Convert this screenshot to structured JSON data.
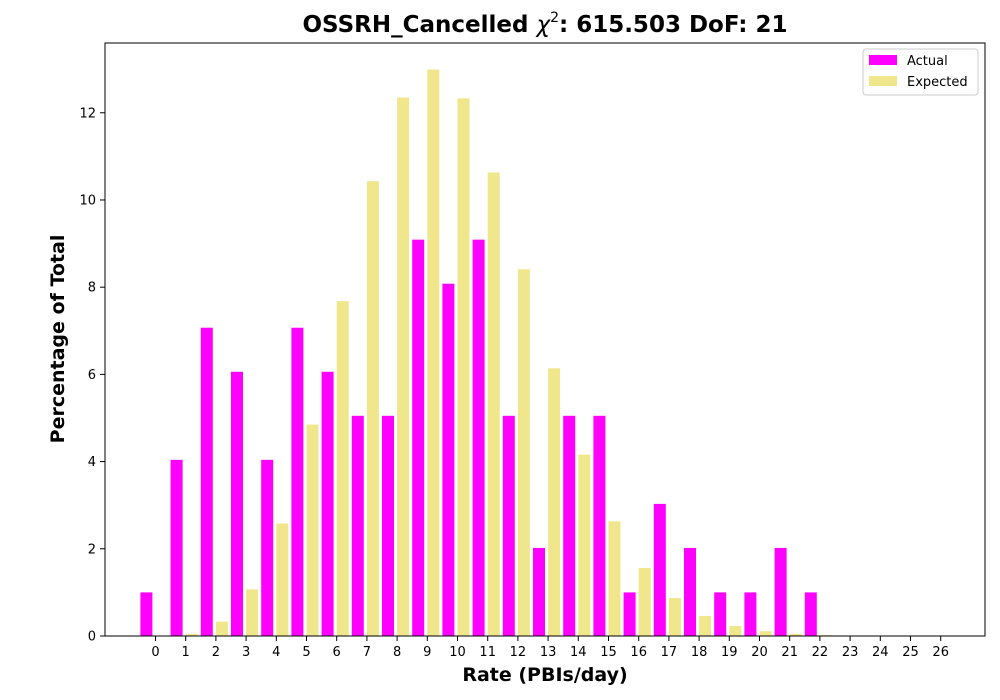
{
  "chart_data": {
    "type": "bar",
    "title_main": "OSSRH_Cancelled ",
    "title_symbol": "χ",
    "title_exp": "2",
    "title_rest": ": 615.503 DoF: 21",
    "xlabel": "Rate (PBIs/day)",
    "ylabel": "Percentage of Total",
    "categories": [
      "0",
      "1",
      "2",
      "3",
      "4",
      "5",
      "6",
      "7",
      "8",
      "9",
      "10",
      "11",
      "12",
      "13",
      "14",
      "15",
      "16",
      "17",
      "18",
      "19",
      "20",
      "21",
      "22",
      "23",
      "24",
      "25",
      "26"
    ],
    "ylim": [
      0,
      13.6
    ],
    "yticks": [
      "0",
      "2",
      "4",
      "6",
      "8",
      "10",
      "12"
    ],
    "legend_position": "top-right",
    "grid": false,
    "series": [
      {
        "name": "Actual",
        "color": "#ff00ff",
        "values": [
          1.0,
          4.04,
          7.07,
          6.06,
          4.04,
          7.07,
          6.06,
          5.05,
          5.05,
          9.09,
          8.08,
          9.09,
          5.05,
          2.02,
          5.05,
          5.05,
          1.0,
          3.03,
          2.02,
          1.0,
          1.0,
          2.02,
          1.0,
          0,
          0,
          0,
          0
        ]
      },
      {
        "name": "Expected",
        "color": "#f0e68c",
        "values": [
          0.01,
          0.05,
          0.33,
          1.07,
          2.58,
          4.85,
          7.68,
          10.43,
          12.35,
          12.99,
          12.33,
          10.63,
          8.41,
          6.14,
          4.16,
          2.63,
          1.56,
          0.87,
          0.46,
          0.23,
          0.11,
          0.05,
          0.02,
          0.01,
          0.0,
          0.0,
          0.0
        ]
      }
    ]
  }
}
